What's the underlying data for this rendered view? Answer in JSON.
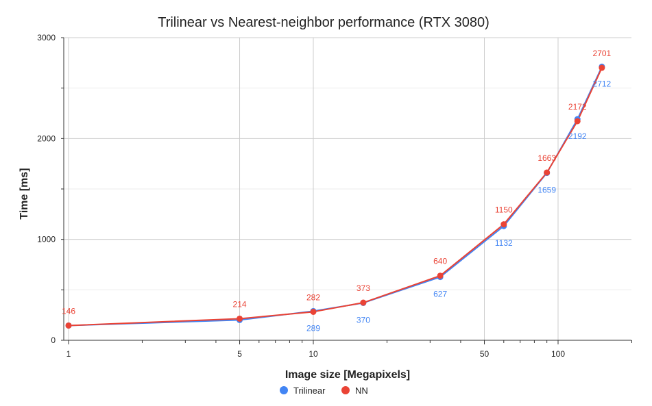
{
  "chart_data": {
    "type": "line",
    "title": "Trilinear vs Nearest-neighbor performance (RTX 3080)",
    "xlabel": "Image size [Megapixels]",
    "ylabel": "Time [ms]",
    "x_scale": "log",
    "xlim": [
      1,
      200
    ],
    "ylim": [
      0,
      3000
    ],
    "x_ticks": [
      1,
      5,
      10,
      50,
      100
    ],
    "y_ticks": [
      0,
      1000,
      2000,
      3000
    ],
    "grid": true,
    "legend_position": "bottom",
    "x": [
      1,
      5,
      10,
      16,
      33,
      60,
      90,
      120,
      151
    ],
    "series": [
      {
        "name": "Trilinear",
        "color": "#4285f4",
        "values": [
          146,
          201,
          289,
          370,
          627,
          1132,
          1659,
          2192,
          2712
        ],
        "labels": [
          "",
          "",
          "289",
          "370",
          "627",
          "1132",
          "1659",
          "2192",
          "2712"
        ]
      },
      {
        "name": "NN",
        "color": "#ea4335",
        "values": [
          146,
          214,
          282,
          373,
          640,
          1150,
          1663,
          2172,
          2701
        ],
        "labels": [
          "146",
          "214",
          "282",
          "373",
          "640",
          "1150",
          "1663",
          "2172",
          "2701"
        ]
      }
    ]
  }
}
